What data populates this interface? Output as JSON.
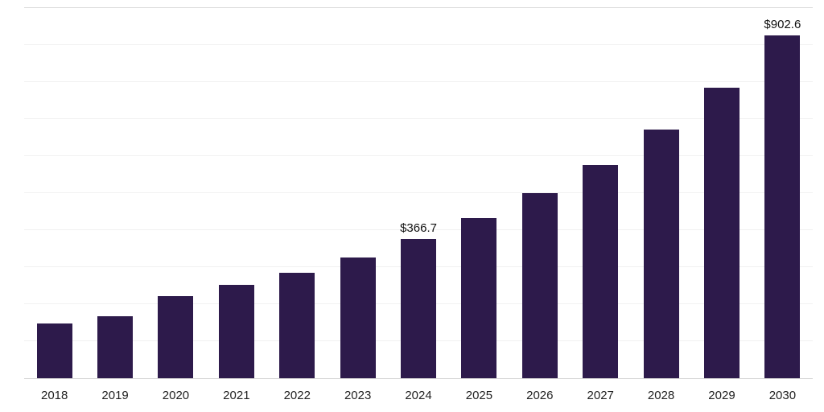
{
  "chart_data": {
    "type": "bar",
    "categories": [
      "2018",
      "2019",
      "2020",
      "2021",
      "2022",
      "2023",
      "2024",
      "2025",
      "2026",
      "2027",
      "2028",
      "2029",
      "2030"
    ],
    "values": [
      144,
      163,
      216,
      246,
      277,
      318,
      366.7,
      422,
      488,
      562,
      655,
      766,
      902.6
    ],
    "labeled_points": [
      {
        "category": "2024",
        "text": "$366.7"
      },
      {
        "category": "2030",
        "text": "$902.6"
      }
    ],
    "title": "",
    "xlabel": "",
    "ylabel": "",
    "ylim": [
      0,
      975
    ],
    "grid": true,
    "grid_divisions": 10,
    "legend": "none",
    "bar_color": "#2d1a4b",
    "background_color": "#ffffff",
    "gridline_color": "#f1f1f1",
    "axis_line_color": "#d6d6d6"
  }
}
